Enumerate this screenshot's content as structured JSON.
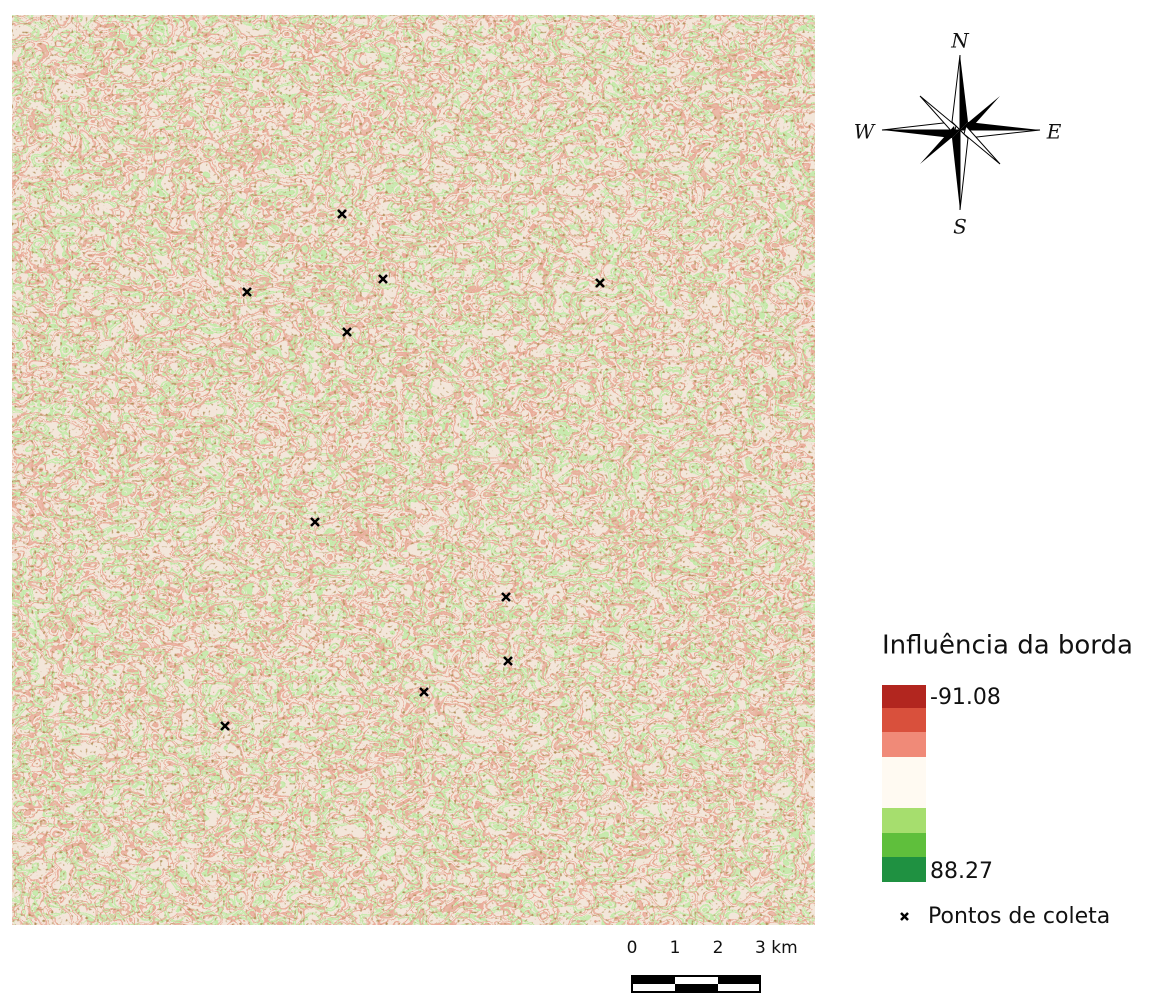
{
  "compass": {
    "north": "N",
    "west": "W",
    "east": "E",
    "south": "S"
  },
  "legend": {
    "title": "Influência da borda",
    "min_label": "-91.08",
    "max_label": "88.27",
    "points_label": "Pontos de coleta"
  },
  "scale_bar": {
    "labels": [
      "0",
      "1",
      "2",
      "3 km"
    ]
  }
}
